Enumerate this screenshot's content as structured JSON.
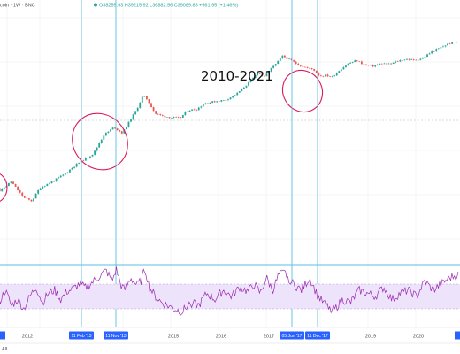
{
  "header": {
    "symbol_label": "coin · 1W · BNC",
    "ohlc_label": "O38255.93 H39215.92 L36882.56 C39089.85 +561.95 (+1.46%)",
    "dot_color": "#26a69a"
  },
  "annotation": "2010-2021",
  "footer": {
    "range_label": "All"
  },
  "colors": {
    "up": "#26a69a",
    "down": "#ef5350",
    "ellipse": "#d81b60",
    "marker_line": "#5bc0de",
    "marker_box": "#2962ff",
    "rsi_line": "#9c27b0",
    "rsi_band": "#ede4fb",
    "grid": "#eeeeee",
    "hline": "#d0d0d0"
  },
  "chart_data": {
    "type": "line",
    "title": "",
    "x_axis": {
      "ticks": [
        "2012",
        "2015",
        "2016",
        "2017",
        "2019",
        "2020"
      ],
      "markers": [
        "11 Feb '13",
        "11 Nov '13",
        "05 Jun '17",
        "11 Dec '17"
      ]
    },
    "price_series": {
      "name": "",
      "scale": "log",
      "x": [
        0,
        0.2,
        0.5,
        0.8,
        1.0,
        1.2,
        1.5,
        1.8,
        2.0,
        2.2,
        2.5,
        2.75,
        3.0,
        3.2,
        3.4,
        3.55,
        3.7,
        3.8,
        3.9,
        4.0,
        4.2,
        4.4,
        4.6,
        4.8,
        5.0,
        5.2,
        5.5,
        5.7,
        5.9,
        6.0,
        6.2,
        6.35,
        6.5,
        6.65,
        6.8,
        6.95,
        7.1,
        7.3,
        7.5,
        7.7,
        7.85,
        8.0,
        8.15,
        8.3,
        8.5,
        8.7,
        8.9,
        9.1,
        9.3,
        9.5,
        9.7,
        9.85,
        10.0,
        10.15,
        10.3,
        10.5,
        10.7,
        10.9,
        11.1,
        11.3
      ],
      "values": [
        8,
        1.5,
        3,
        1,
        0.8,
        2,
        3,
        5,
        8,
        12,
        20,
        70,
        120,
        80,
        200,
        400,
        1000,
        800,
        500,
        300,
        250,
        230,
        220,
        380,
        400,
        600,
        700,
        750,
        1000,
        1200,
        2000,
        3000,
        5000,
        3500,
        6000,
        9000,
        15000,
        11000,
        8000,
        6500,
        6000,
        3800,
        4000,
        3600,
        6000,
        9000,
        11000,
        8000,
        7500,
        9000,
        8500,
        10000,
        11500,
        12000,
        11000,
        13000,
        19000,
        25000,
        33000,
        39089
      ]
    },
    "rsi_series": {
      "name": "",
      "x": [
        0,
        0.15,
        0.3,
        0.45,
        0.6,
        0.75,
        0.9,
        1.05,
        1.2,
        1.35,
        1.5,
        1.65,
        1.8,
        1.95,
        2.1,
        2.25,
        2.4,
        2.55,
        2.75,
        2.9,
        3.0,
        3.1,
        3.2,
        3.35,
        3.5,
        3.6,
        3.7,
        3.8,
        3.95,
        4.1,
        4.25,
        4.4,
        4.6,
        4.8,
        5.0,
        5.2,
        5.4,
        5.6,
        5.8,
        6.0,
        6.2,
        6.35,
        6.5,
        6.65,
        6.8,
        6.95,
        7.1,
        7.3,
        7.5,
        7.7,
        7.9,
        8.1,
        8.3,
        8.5,
        8.7,
        8.9,
        9.1,
        9.3,
        9.5,
        9.7,
        9.9,
        10.1,
        10.3,
        10.5,
        10.7,
        10.9,
        11.1,
        11.3
      ],
      "values": [
        55,
        40,
        60,
        35,
        45,
        30,
        50,
        65,
        40,
        55,
        60,
        45,
        58,
        62,
        70,
        64,
        72,
        80,
        92,
        75,
        95,
        70,
        60,
        80,
        68,
        75,
        95,
        65,
        50,
        40,
        35,
        30,
        25,
        40,
        35,
        55,
        45,
        60,
        50,
        65,
        58,
        70,
        55,
        80,
        60,
        85,
        88,
        70,
        60,
        80,
        50,
        35,
        28,
        45,
        40,
        60,
        55,
        50,
        65,
        45,
        55,
        60,
        50,
        75,
        60,
        70,
        80,
        85
      ],
      "band": [
        30,
        70
      ],
      "ylim": [
        0,
        100
      ]
    }
  }
}
